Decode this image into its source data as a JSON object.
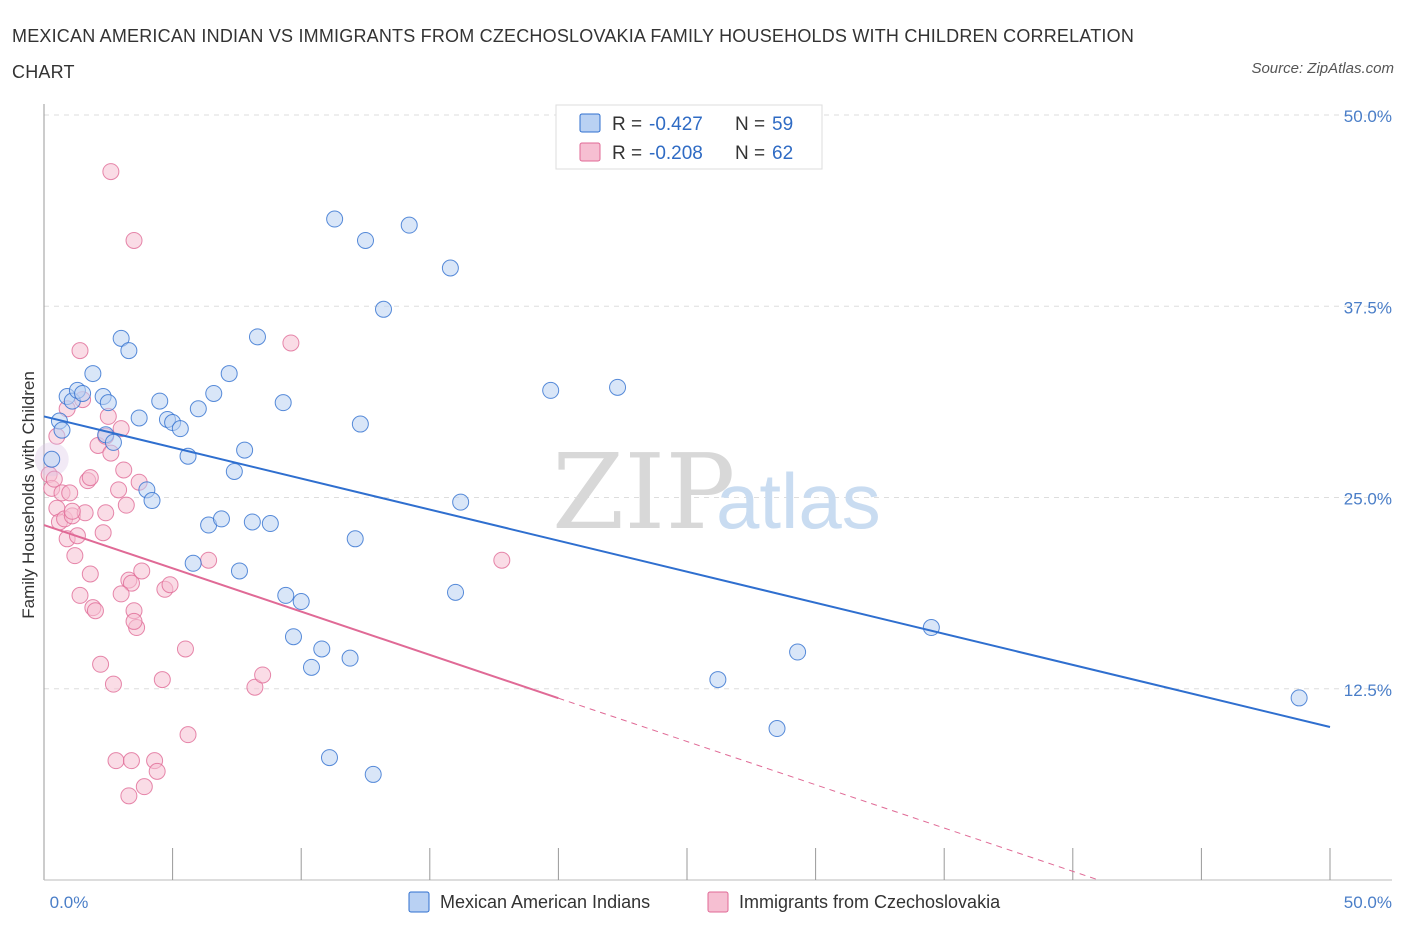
{
  "title": "MEXICAN AMERICAN INDIAN VS IMMIGRANTS FROM CZECHOSLOVAKIA FAMILY HOUSEHOLDS WITH CHILDREN CORRELATION CHART",
  "source": "Source: ZipAtlas.com",
  "watermark": {
    "zip": "ZIP",
    "atlas": "atlas"
  },
  "colors": {
    "blue": "#2f6fcf",
    "blue_fill": "#b9d1f3",
    "pink": "#e06a96",
    "pink_fill": "#f6bfd2"
  },
  "legend": {
    "rows": [
      {
        "r_label": "R = ",
        "r_value": "-0.427",
        "n_label": "N = ",
        "n_value": "59"
      },
      {
        "r_label": "R = ",
        "r_value": "-0.208",
        "n_label": "N = ",
        "n_value": "62"
      }
    ]
  },
  "chart_data": {
    "type": "scatter",
    "title": "MEXICAN AMERICAN INDIAN VS IMMIGRANTS FROM CZECHOSLOVAKIA FAMILY HOUSEHOLDS WITH CHILDREN CORRELATION CHART",
    "xlabel": "",
    "ylabel": "Family Households with Children",
    "xlim": [
      0,
      50
    ],
    "ylim": [
      0,
      50
    ],
    "x_tick_labels": [
      "0.0%",
      "50.0%"
    ],
    "y_tick_labels": [
      {
        "value": 12.5,
        "label": "12.5%"
      },
      {
        "value": 25,
        "label": "25.0%"
      },
      {
        "value": 37.5,
        "label": "37.5%"
      },
      {
        "value": 50,
        "label": "50.0%"
      }
    ],
    "series": [
      {
        "name": "Mexican American Indians",
        "trend": {
          "x": [
            0,
            50
          ],
          "y": [
            30.3,
            10.0
          ],
          "solid_to": 50
        },
        "points": [
          [
            0.3,
            27.5
          ],
          [
            0.6,
            30.0
          ],
          [
            0.7,
            29.4
          ],
          [
            0.9,
            31.6
          ],
          [
            1.1,
            31.3
          ],
          [
            1.3,
            32.0
          ],
          [
            1.5,
            31.8
          ],
          [
            1.9,
            33.1
          ],
          [
            2.3,
            31.6
          ],
          [
            2.5,
            31.2
          ],
          [
            2.4,
            29.1
          ],
          [
            2.7,
            28.6
          ],
          [
            3.0,
            35.4
          ],
          [
            3.3,
            34.6
          ],
          [
            3.7,
            30.2
          ],
          [
            4.0,
            25.5
          ],
          [
            4.2,
            24.8
          ],
          [
            4.5,
            31.3
          ],
          [
            4.8,
            30.1
          ],
          [
            5.0,
            29.9
          ],
          [
            5.3,
            29.5
          ],
          [
            5.6,
            27.7
          ],
          [
            5.8,
            20.7
          ],
          [
            6.0,
            30.8
          ],
          [
            6.4,
            23.2
          ],
          [
            6.6,
            31.8
          ],
          [
            6.9,
            23.6
          ],
          [
            7.2,
            33.1
          ],
          [
            7.4,
            26.7
          ],
          [
            7.6,
            20.2
          ],
          [
            7.8,
            28.1
          ],
          [
            8.1,
            23.4
          ],
          [
            8.3,
            35.5
          ],
          [
            8.8,
            23.3
          ],
          [
            9.3,
            31.2
          ],
          [
            9.4,
            18.6
          ],
          [
            9.7,
            15.9
          ],
          [
            10.0,
            18.2
          ],
          [
            10.4,
            13.9
          ],
          [
            10.8,
            15.1
          ],
          [
            11.1,
            8.0
          ],
          [
            11.3,
            43.2
          ],
          [
            11.9,
            14.5
          ],
          [
            12.1,
            22.3
          ],
          [
            12.3,
            29.8
          ],
          [
            12.5,
            41.8
          ],
          [
            12.8,
            6.9
          ],
          [
            13.2,
            37.3
          ],
          [
            14.2,
            42.8
          ],
          [
            15.8,
            40.0
          ],
          [
            16.0,
            18.8
          ],
          [
            16.2,
            24.7
          ],
          [
            19.7,
            32.0
          ],
          [
            22.3,
            32.2
          ],
          [
            26.2,
            13.1
          ],
          [
            28.5,
            9.9
          ],
          [
            29.3,
            14.9
          ],
          [
            34.5,
            16.5
          ],
          [
            48.8,
            11.9
          ]
        ]
      },
      {
        "name": "Immigrants from Czechoslovakia",
        "trend": {
          "x": [
            0,
            41
          ],
          "y": [
            23.2,
            0
          ],
          "solid_to": 20
        },
        "points": [
          [
            0.2,
            26.5
          ],
          [
            0.3,
            25.6
          ],
          [
            0.4,
            26.2
          ],
          [
            0.5,
            24.3
          ],
          [
            0.6,
            23.4
          ],
          [
            0.7,
            25.3
          ],
          [
            0.8,
            23.6
          ],
          [
            0.9,
            22.3
          ],
          [
            1.0,
            25.3
          ],
          [
            1.1,
            23.8
          ],
          [
            1.2,
            21.2
          ],
          [
            1.3,
            22.5
          ],
          [
            1.4,
            18.6
          ],
          [
            1.5,
            31.4
          ],
          [
            1.6,
            24.0
          ],
          [
            1.7,
            26.1
          ],
          [
            1.8,
            20.0
          ],
          [
            1.9,
            17.8
          ],
          [
            2.0,
            17.6
          ],
          [
            2.1,
            28.4
          ],
          [
            2.2,
            14.1
          ],
          [
            2.3,
            22.7
          ],
          [
            2.4,
            29.0
          ],
          [
            2.5,
            30.3
          ],
          [
            2.6,
            27.9
          ],
          [
            2.7,
            12.8
          ],
          [
            2.8,
            7.8
          ],
          [
            2.9,
            25.5
          ],
          [
            3.0,
            29.5
          ],
          [
            3.1,
            26.8
          ],
          [
            3.2,
            24.5
          ],
          [
            3.3,
            19.6
          ],
          [
            3.4,
            19.4
          ],
          [
            3.5,
            17.6
          ],
          [
            3.6,
            16.5
          ],
          [
            3.7,
            26.0
          ],
          [
            3.8,
            20.2
          ],
          [
            1.4,
            34.6
          ],
          [
            2.6,
            46.3
          ],
          [
            3.5,
            41.8
          ],
          [
            3.3,
            5.5
          ],
          [
            3.4,
            7.8
          ],
          [
            3.5,
            16.9
          ],
          [
            3.9,
            6.1
          ],
          [
            4.3,
            7.8
          ],
          [
            4.4,
            7.1
          ],
          [
            4.6,
            13.1
          ],
          [
            4.7,
            19.0
          ],
          [
            4.9,
            19.3
          ],
          [
            5.5,
            15.1
          ],
          [
            5.6,
            9.5
          ],
          [
            6.4,
            20.9
          ],
          [
            8.2,
            12.6
          ],
          [
            8.5,
            13.4
          ],
          [
            9.6,
            35.1
          ],
          [
            17.8,
            20.9
          ],
          [
            0.9,
            30.8
          ],
          [
            1.8,
            26.3
          ],
          [
            2.4,
            24.0
          ],
          [
            3.0,
            18.7
          ],
          [
            1.1,
            24.1
          ],
          [
            0.5,
            29.0
          ]
        ]
      }
    ]
  },
  "bottom_legend": [
    {
      "label": "Mexican American Indians"
    },
    {
      "label": "Immigrants from Czechoslovakia"
    }
  ]
}
